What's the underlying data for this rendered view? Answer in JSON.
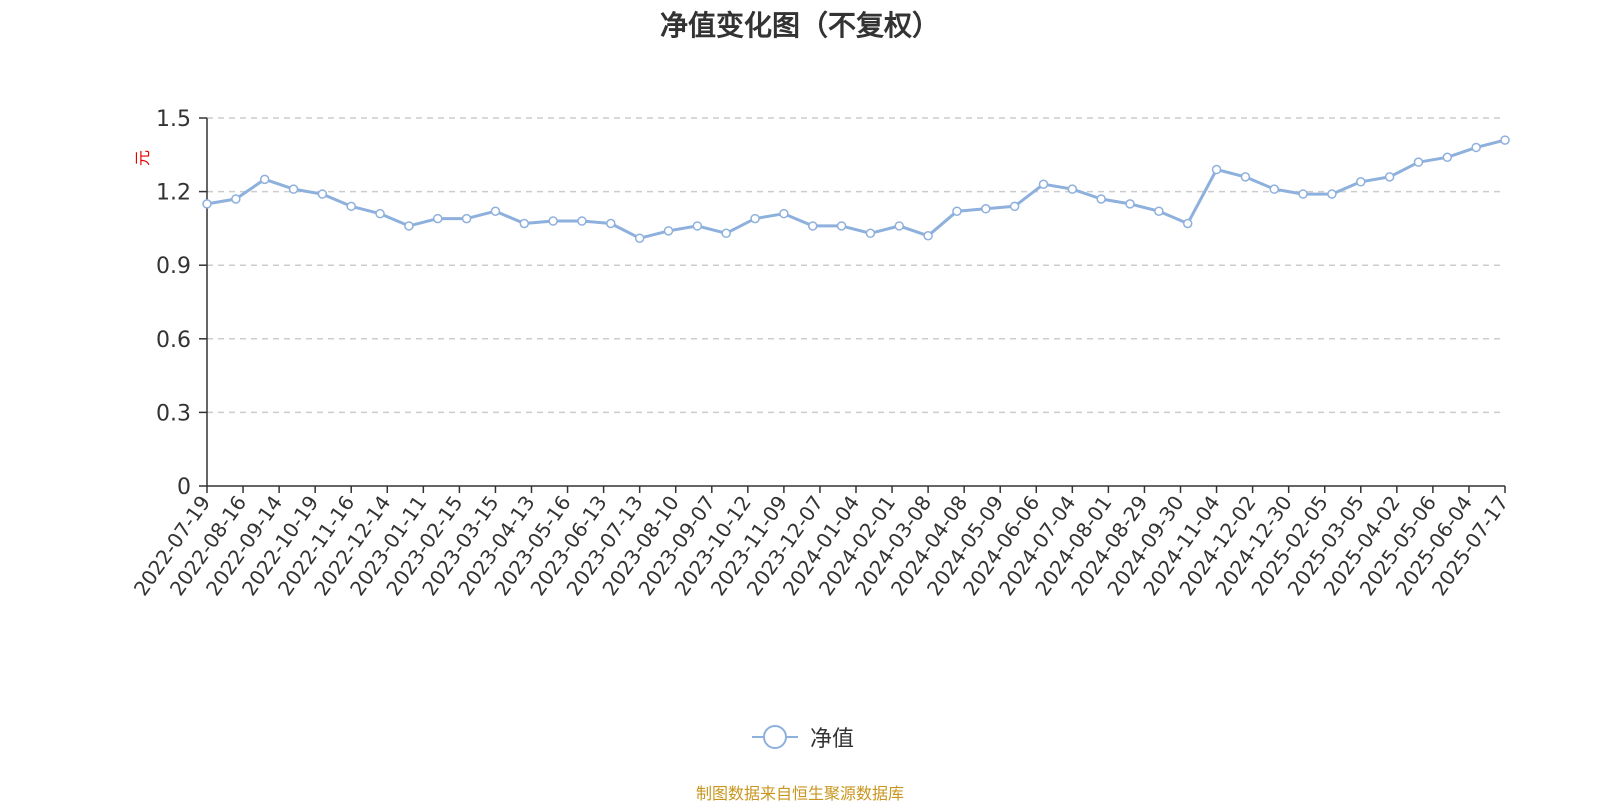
{
  "colors": {
    "series": "#8eb0dd",
    "grid": "#cccccc",
    "axis": "#333333",
    "unit": "#e60000",
    "source": "#c8961e"
  },
  "chart_data": {
    "type": "line",
    "title": "净值变化图（不复权）",
    "ylabel": "元",
    "ylim": [
      0,
      1.5
    ],
    "y_ticks": [
      "0",
      "0.3",
      "0.6",
      "0.9",
      "1.2",
      "1.5"
    ],
    "grid": "horizontal dashed",
    "legend": "bottom-center",
    "x_ticks": [
      "2022-07-19",
      "2022-08-16",
      "2022-09-14",
      "2022-10-19",
      "2022-11-16",
      "2022-12-14",
      "2023-01-11",
      "2023-02-15",
      "2023-03-15",
      "2023-04-13",
      "2023-05-16",
      "2023-06-13",
      "2023-07-13",
      "2023-08-10",
      "2023-09-07",
      "2023-10-12",
      "2023-11-09",
      "2023-12-07",
      "2024-01-04",
      "2024-02-01",
      "2024-03-08",
      "2024-04-08",
      "2024-05-09",
      "2024-06-06",
      "2024-07-04",
      "2024-08-01",
      "2024-08-29",
      "2024-09-30",
      "2024-11-04",
      "2024-12-02",
      "2024-12-30",
      "2025-02-05",
      "2025-03-05",
      "2025-04-02",
      "2025-05-06",
      "2025-06-04",
      "2025-07-17"
    ],
    "series": [
      {
        "name": "净值",
        "values": [
          1.15,
          1.17,
          1.25,
          1.21,
          1.19,
          1.14,
          1.11,
          1.06,
          1.09,
          1.09,
          1.12,
          1.07,
          1.08,
          1.08,
          1.07,
          1.01,
          1.04,
          1.06,
          1.03,
          1.09,
          1.11,
          1.06,
          1.06,
          1.03,
          1.06,
          1.02,
          1.12,
          1.13,
          1.14,
          1.23,
          1.21,
          1.17,
          1.15,
          1.12,
          1.07,
          1.29,
          1.26,
          1.21,
          1.19,
          1.19,
          1.24,
          1.26,
          1.32,
          1.34,
          1.38,
          1.41
        ]
      }
    ]
  },
  "legend": {
    "label": "净值"
  },
  "footer": {
    "source": "制图数据来自恒生聚源数据库"
  }
}
